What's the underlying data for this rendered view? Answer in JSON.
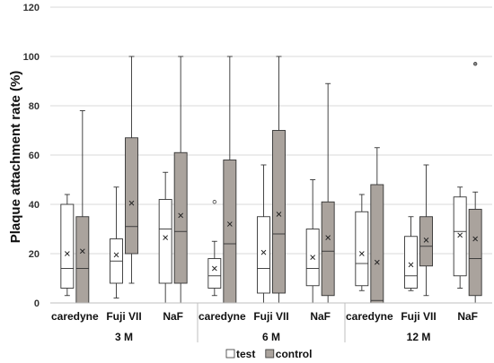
{
  "chart_data": {
    "type": "box",
    "ylabel": "Plaque attachment  rate (%)",
    "ylim": [
      0,
      120
    ],
    "yticks": [
      0,
      20,
      40,
      60,
      80,
      100,
      120
    ],
    "grid": "horizontal",
    "legend_position": "bottom-center",
    "groups": [
      {
        "label": "3 M",
        "categories": [
          "caredyne",
          "Fuji VII",
          "NaF"
        ]
      },
      {
        "label": "6 M",
        "categories": [
          "caredyne",
          "Fuji VII",
          "NaF"
        ]
      },
      {
        "label": "12 M",
        "categories": [
          "caredyne",
          "Fuji VII",
          "NaF"
        ]
      }
    ],
    "series": [
      {
        "name": "test",
        "color": "#ffffff",
        "boxes": [
          {
            "min": 3,
            "q1": 6,
            "median": 14,
            "q3": 40,
            "max": 44,
            "mean": 20,
            "outliers": []
          },
          {
            "min": 2,
            "q1": 8,
            "median": 17,
            "q3": 26,
            "max": 47,
            "mean": 19.5,
            "outliers": []
          },
          {
            "min": 0,
            "q1": 8,
            "median": 30,
            "q3": 42,
            "max": 53,
            "mean": 26.5,
            "outliers": []
          },
          {
            "min": 3,
            "q1": 6,
            "median": 11,
            "q3": 18,
            "max": 25,
            "mean": 14,
            "outliers": [
              41
            ]
          },
          {
            "min": 0,
            "q1": 4,
            "median": 14,
            "q3": 35,
            "max": 56,
            "mean": 20.5,
            "outliers": []
          },
          {
            "min": 0,
            "q1": 7,
            "median": 14,
            "q3": 30,
            "max": 50,
            "mean": 18.5,
            "outliers": []
          },
          {
            "min": 5,
            "q1": 7,
            "median": 16,
            "q3": 37,
            "max": 44,
            "mean": 20,
            "outliers": []
          },
          {
            "min": 5,
            "q1": 6,
            "median": 11,
            "q3": 27,
            "max": 35,
            "mean": 15.5,
            "outliers": []
          },
          {
            "min": 6,
            "q1": 11,
            "median": 29,
            "q3": 43,
            "max": 47,
            "mean": 27.5,
            "outliers": []
          }
        ]
      },
      {
        "name": "control",
        "color": "#aaa39d",
        "boxes": [
          {
            "min": 0,
            "q1": 0,
            "median": 14,
            "q3": 35,
            "max": 78,
            "mean": 21,
            "outliers": []
          },
          {
            "min": 8,
            "q1": 20,
            "median": 31,
            "q3": 67,
            "max": 100,
            "mean": 40.5,
            "outliers": []
          },
          {
            "min": 0,
            "q1": 8,
            "median": 29,
            "q3": 61,
            "max": 100,
            "mean": 35.5,
            "outliers": []
          },
          {
            "min": 0,
            "q1": 0,
            "median": 24,
            "q3": 58,
            "max": 100,
            "mean": 32,
            "outliers": []
          },
          {
            "min": 0,
            "q1": 4,
            "median": 28,
            "q3": 70,
            "max": 100,
            "mean": 36,
            "outliers": []
          },
          {
            "min": 0,
            "q1": 3,
            "median": 21,
            "q3": 41,
            "max": 89,
            "mean": 26.5,
            "outliers": []
          },
          {
            "min": 0,
            "q1": 0,
            "median": 1,
            "q3": 48,
            "max": 63,
            "mean": 16.5,
            "outliers": []
          },
          {
            "min": 3,
            "q1": 15,
            "median": 23,
            "q3": 35,
            "max": 56,
            "mean": 25.5,
            "outliers": []
          },
          {
            "min": 0,
            "q1": 3,
            "median": 18,
            "q3": 38,
            "max": 45,
            "mean": 26,
            "outliers": [
              97
            ]
          }
        ]
      }
    ]
  }
}
